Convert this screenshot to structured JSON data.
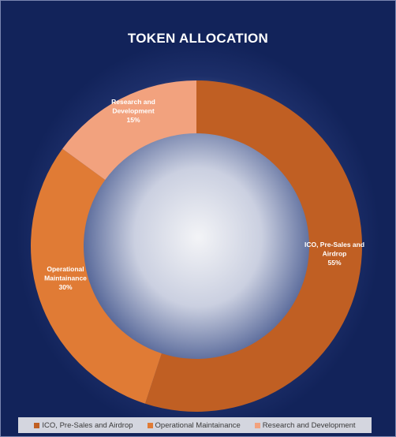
{
  "chart_data": {
    "type": "pie",
    "subtype": "doughnut",
    "title": "TOKEN ALLOCATION",
    "categories": [
      "ICO, Pre-Sales and Airdrop",
      "Operational Maintainance",
      "Research and Development"
    ],
    "values": [
      55,
      30,
      15
    ],
    "colors": [
      "#c05f23",
      "#e07b35",
      "#f2a27e"
    ],
    "data_labels": [
      {
        "name_lines": [
          "ICO, Pre-Sales and",
          "Airdrop"
        ],
        "pct": "55%"
      },
      {
        "name_lines": [
          "Operational",
          "Maintainance"
        ],
        "pct": "30%"
      },
      {
        "name_lines": [
          "Research and",
          "Development"
        ],
        "pct": "15%"
      }
    ],
    "legend": "bottom"
  },
  "legend_items": [
    {
      "label": "ICO, Pre-Sales and Airdrop",
      "color": "#c05f23"
    },
    {
      "label": "Operational Maintainance",
      "color": "#e07b35"
    },
    {
      "label": "Research and Development",
      "color": "#f2a27e"
    }
  ]
}
